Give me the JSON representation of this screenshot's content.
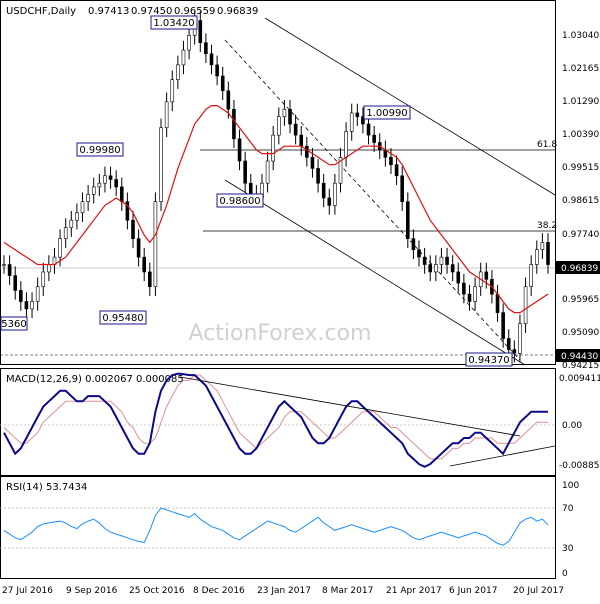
{
  "chart_data": {
    "type": "candlestick",
    "symbol": "USDCHF,Daily",
    "ohlc_header": [
      "0.97413",
      "0.97450",
      "0.96559",
      "0.96839"
    ],
    "watermark": "ActionForex.com",
    "price_axis": {
      "min": 0.9411,
      "max": 1.0336,
      "ticks": [
        "1.03040",
        "1.02165",
        "1.01290",
        "1.00390",
        "0.99515",
        "0.98615",
        "0.97740",
        "0.96839",
        "0.95965",
        "0.95090",
        "0.94430",
        "0.94215"
      ]
    },
    "x_axis": {
      "labels": [
        "27 Jul 2016",
        "9 Sep 2016",
        "25 Oct 2016",
        "8 Dec 2016",
        "23 Jan 2017",
        "8 Mar 2017",
        "21 Apr 2017",
        "6 Jun 2017",
        "20 Jul 2017"
      ]
    },
    "close_series": [
      0.968,
      0.965,
      0.961,
      0.958,
      0.956,
      0.958,
      0.962,
      0.966,
      0.968,
      0.97,
      0.975,
      0.978,
      0.98,
      0.982,
      0.985,
      0.987,
      0.989,
      0.99,
      0.992,
      0.991,
      0.989,
      0.985,
      0.98,
      0.975,
      0.97,
      0.966,
      0.962,
      0.985,
      1.005,
      1.012,
      1.018,
      1.022,
      1.026,
      1.03,
      1.034,
      1.028,
      1.025,
      1.022,
      1.019,
      1.015,
      1.01,
      1.002,
      0.996,
      0.99,
      0.987,
      0.986,
      0.99,
      0.996,
      1.003,
      1.008,
      1.01,
      1.006,
      1.003,
      1.0,
      0.997,
      0.994,
      0.99,
      0.986,
      0.984,
      0.99,
      0.997,
      1.004,
      1.009,
      1.008,
      1.006,
      1.003,
      1.001,
      0.999,
      0.997,
      0.995,
      0.992,
      0.985,
      0.975,
      0.972,
      0.97,
      0.968,
      0.966,
      0.968,
      0.97,
      0.968,
      0.966,
      0.963,
      0.96,
      0.958,
      0.962,
      0.966,
      0.964,
      0.96,
      0.955,
      0.948,
      0.945,
      0.944,
      0.952,
      0.962,
      0.968,
      0.972,
      0.974,
      0.968
    ],
    "moving_average": [
      0.974,
      0.973,
      0.972,
      0.971,
      0.97,
      0.969,
      0.968,
      0.968,
      0.968,
      0.968,
      0.969,
      0.97,
      0.972,
      0.974,
      0.976,
      0.978,
      0.98,
      0.982,
      0.984,
      0.985,
      0.986,
      0.985,
      0.984,
      0.982,
      0.979,
      0.976,
      0.974,
      0.976,
      0.98,
      0.984,
      0.989,
      0.994,
      0.998,
      1.002,
      1.006,
      1.008,
      1.01,
      1.011,
      1.011,
      1.01,
      1.009,
      1.007,
      1.005,
      1.003,
      1.001,
      0.999,
      0.998,
      0.998,
      0.998,
      0.999,
      1.0,
      1.0,
      1.0,
      1.0,
      0.999,
      0.998,
      0.997,
      0.996,
      0.995,
      0.995,
      0.996,
      0.997,
      0.998,
      0.999,
      1.0,
      1.0,
      1.0,
      1.0,
      0.999,
      0.998,
      0.997,
      0.995,
      0.992,
      0.989,
      0.986,
      0.983,
      0.98,
      0.978,
      0.976,
      0.974,
      0.972,
      0.97,
      0.968,
      0.966,
      0.965,
      0.964,
      0.963,
      0.962,
      0.96,
      0.958,
      0.956,
      0.955,
      0.955,
      0.956,
      0.957,
      0.958,
      0.959,
      0.96
    ],
    "annotations": [
      {
        "text": "1.03420",
        "price": 1.0342
      },
      {
        "text": "0.99980",
        "price": 0.9998
      },
      {
        "text": "0.98600",
        "price": 0.986
      },
      {
        "text": "1.00990",
        "price": 1.0099
      },
      {
        "text": "0.95480",
        "price": 0.9548
      },
      {
        "text": "0.94370",
        "price": 0.9437
      },
      {
        "text": "5360",
        "price": 0.9536
      }
    ],
    "horizontal_levels": [
      {
        "price": 0.9998,
        "label": "61.8"
      },
      {
        "price": 0.9774,
        "label": "38.2"
      },
      {
        "price": 0.96839,
        "label": ""
      },
      {
        "price": 0.9443,
        "label": ""
      }
    ],
    "current_price_label": "0.96839",
    "support_label": "0.94430",
    "macd": {
      "title": "MACD(12,26,9) 0.002067 0.000085",
      "axis_ticks": [
        "0.009411",
        "0.00",
        "-0.008852"
      ],
      "range": [
        -0.0095,
        0.0096
      ],
      "line": [
        -0.002,
        -0.004,
        -0.006,
        -0.005,
        -0.003,
        -0.001,
        0.001,
        0.003,
        0.004,
        0.005,
        0.006,
        0.006,
        0.005,
        0.004,
        0.004,
        0.005,
        0.005,
        0.005,
        0.004,
        0.003,
        0.001,
        -0.001,
        -0.003,
        -0.005,
        -0.006,
        -0.006,
        -0.004,
        0.002,
        0.006,
        0.008,
        0.009,
        0.0093,
        0.0092,
        0.009,
        0.009,
        0.008,
        0.007,
        0.005,
        0.003,
        0.001,
        -0.001,
        -0.003,
        -0.005,
        -0.006,
        -0.006,
        -0.005,
        -0.003,
        -0.001,
        0.001,
        0.003,
        0.004,
        0.003,
        0.002,
        0.001,
        -0.001,
        -0.003,
        -0.004,
        -0.004,
        -0.003,
        -0.001,
        0.001,
        0.003,
        0.004,
        0.004,
        0.003,
        0.002,
        0.001,
        0.0,
        -0.001,
        -0.002,
        -0.003,
        -0.004,
        -0.006,
        -0.007,
        -0.008,
        -0.0085,
        -0.008,
        -0.007,
        -0.006,
        -0.005,
        -0.004,
        -0.004,
        -0.003,
        -0.003,
        -0.002,
        -0.002,
        -0.003,
        -0.004,
        -0.005,
        -0.006,
        -0.004,
        -0.002,
        0.0,
        0.001,
        0.002,
        0.002,
        0.002,
        0.002
      ],
      "signal": [
        -0.001,
        -0.002,
        -0.003,
        -0.004,
        -0.004,
        -0.003,
        -0.002,
        0.0,
        0.001,
        0.002,
        0.003,
        0.004,
        0.004,
        0.004,
        0.004,
        0.004,
        0.004,
        0.004,
        0.004,
        0.004,
        0.003,
        0.002,
        0.0,
        -0.001,
        -0.003,
        -0.004,
        -0.004,
        -0.003,
        0.0,
        0.003,
        0.005,
        0.007,
        0.008,
        0.008,
        0.009,
        0.009,
        0.008,
        0.007,
        0.006,
        0.004,
        0.002,
        0.0,
        -0.002,
        -0.003,
        -0.004,
        -0.005,
        -0.004,
        -0.003,
        -0.002,
        -0.001,
        0.001,
        0.002,
        0.002,
        0.002,
        0.001,
        0.0,
        -0.001,
        -0.002,
        -0.003,
        -0.003,
        -0.002,
        -0.001,
        0.0,
        0.001,
        0.002,
        0.002,
        0.002,
        0.001,
        0.0,
        -0.001,
        -0.001,
        -0.002,
        -0.003,
        -0.004,
        -0.005,
        -0.006,
        -0.007,
        -0.007,
        -0.007,
        -0.006,
        -0.005,
        -0.005,
        -0.004,
        -0.004,
        -0.003,
        -0.003,
        -0.003,
        -0.003,
        -0.004,
        -0.004,
        -0.004,
        -0.004,
        -0.003,
        -0.002,
        -0.001,
        0.0,
        0.0,
        0.0
      ]
    },
    "rsi": {
      "title": "RSI(14) 53.7434",
      "axis_ticks": [
        "100",
        "70",
        "30",
        "0"
      ],
      "range": [
        0,
        100
      ],
      "levels": [
        70,
        30
      ],
      "values": [
        48,
        44,
        40,
        38,
        42,
        46,
        52,
        55,
        56,
        57,
        58,
        56,
        52,
        50,
        55,
        58,
        60,
        56,
        50,
        46,
        44,
        42,
        40,
        38,
        36,
        35,
        48,
        64,
        72,
        70,
        68,
        66,
        64,
        62,
        66,
        60,
        56,
        52,
        50,
        48,
        44,
        40,
        38,
        42,
        46,
        50,
        54,
        58,
        56,
        54,
        52,
        48,
        46,
        50,
        54,
        58,
        62,
        56,
        52,
        48,
        50,
        52,
        54,
        52,
        50,
        48,
        46,
        48,
        50,
        52,
        50,
        48,
        44,
        40,
        38,
        40,
        42,
        44,
        46,
        44,
        42,
        40,
        42,
        44,
        46,
        44,
        42,
        38,
        34,
        32,
        36,
        46,
        56,
        60,
        62,
        58,
        60,
        54
      ]
    }
  },
  "colors": {
    "background": "#ffffff",
    "frame": "#000000",
    "text": "#000000",
    "candle_up": "#000000",
    "candle_down": "#000000",
    "moving_average": "#e01010",
    "macd_line": "#0a0a8a",
    "macd_signal": "#e09090",
    "rsi_line": "#1e90ff",
    "label_border": "#1a1a8a",
    "watermark": "#d0d0d0"
  }
}
